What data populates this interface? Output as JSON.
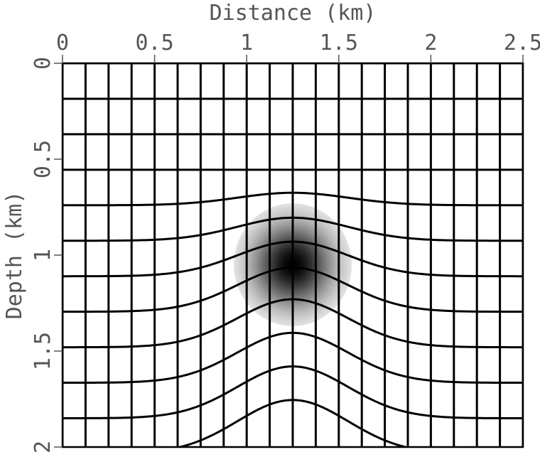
{
  "chart_data": {
    "type": "heatmap",
    "title": "",
    "xlabel": "Distance (km)",
    "ylabel": "Depth (km)",
    "xlim": [
      0,
      2.5
    ],
    "ylim": [
      0,
      2
    ],
    "y_inverted": true,
    "x_axis_position": "top",
    "x_ticks": [
      0,
      0.5,
      1,
      1.5,
      2,
      2.5
    ],
    "x_tick_labels": [
      "0",
      "0.5",
      "1",
      "1.5",
      "2",
      "2.5"
    ],
    "y_ticks": [
      0,
      0.5,
      1,
      1.5,
      2
    ],
    "y_tick_labels": [
      "0",
      "0.5",
      "1",
      "1.5",
      "2"
    ],
    "colormap": "grayscale (white low, black high)",
    "anomaly": {
      "shape": "gaussian",
      "center_km": [
        1.25,
        1.05
      ],
      "radius_km": 0.32
    },
    "grid": {
      "vertical_lines_x_km": [
        0,
        0.125,
        0.25,
        0.375,
        0.5,
        0.625,
        0.75,
        0.875,
        1.0,
        1.125,
        1.25,
        1.375,
        1.5,
        1.625,
        1.75,
        1.875,
        2.0,
        2.125,
        2.25,
        2.375,
        2.5
      ],
      "horizontal_lines_base_depth_km": [
        0,
        0.185,
        0.37,
        0.555,
        0.74,
        0.925,
        1.11,
        1.295,
        1.48,
        1.665,
        1.85,
        2.035
      ],
      "uplift_center_x_km": 1.25,
      "uplift_width_km": 0.3,
      "uplift_profile_km": [
        {
          "base_depth": 0.555,
          "uplift": 0.0
        },
        {
          "base_depth": 0.74,
          "uplift": 0.065
        },
        {
          "base_depth": 0.925,
          "uplift": 0.12
        },
        {
          "base_depth": 1.11,
          "uplift": 0.18
        },
        {
          "base_depth": 1.295,
          "uplift": 0.23
        },
        {
          "base_depth": 1.48,
          "uplift": 0.25
        },
        {
          "base_depth": 1.665,
          "uplift": 0.26
        },
        {
          "base_depth": 1.85,
          "uplift": 0.27
        },
        {
          "base_depth": 2.035,
          "uplift": 0.28
        }
      ],
      "line_color": "#000000"
    },
    "colors": {
      "axis_text": "#555555",
      "background": "#ffffff",
      "lines": "#000000"
    }
  }
}
